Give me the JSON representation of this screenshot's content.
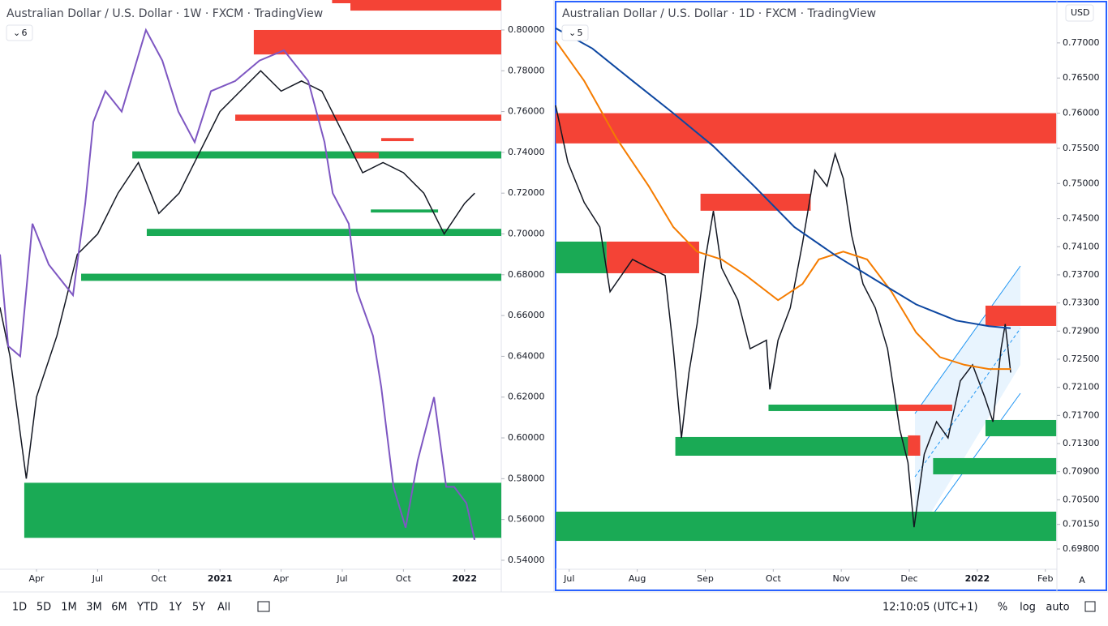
{
  "chart_data": [
    {
      "type": "line",
      "title": "Australian Dollar / U.S. Dollar · 1W · FXCM · TradingView",
      "legend_badge": "6",
      "xlim": [
        1.21,
        25.8
      ],
      "ylim": [
        0.5364,
        0.8147
      ],
      "xticks": [
        {
          "value": 3,
          "label": "Apr"
        },
        {
          "value": 6,
          "label": "Jul"
        },
        {
          "value": 9,
          "label": "Oct"
        },
        {
          "value": 12,
          "label": "2021"
        },
        {
          "value": 15,
          "label": "Apr"
        },
        {
          "value": 18,
          "label": "Jul"
        },
        {
          "value": 21,
          "label": "Oct"
        },
        {
          "value": 24,
          "label": "2022"
        }
      ],
      "yticks": [
        {
          "value": 0.8,
          "label": "0.80000"
        },
        {
          "value": 0.78,
          "label": "0.78000"
        },
        {
          "value": 0.76,
          "label": "0.76000"
        },
        {
          "value": 0.74,
          "label": "0.74000"
        },
        {
          "value": 0.72,
          "label": "0.72000"
        },
        {
          "value": 0.7,
          "label": "0.70000"
        },
        {
          "value": 0.68,
          "label": "0.68000"
        },
        {
          "value": 0.66,
          "label": "0.66000"
        },
        {
          "value": 0.64,
          "label": "0.64000"
        },
        {
          "value": 0.62,
          "label": "0.62000"
        },
        {
          "value": 0.6,
          "label": "0.60000"
        },
        {
          "value": 0.58,
          "label": "0.58000"
        },
        {
          "value": 0.56,
          "label": "0.56000"
        },
        {
          "value": 0.54,
          "label": "0.54000"
        }
      ],
      "zones": [
        {
          "color": "#f44336",
          "x": [
            17.5,
            25.8
          ],
          "top": 0.8147,
          "bottom": 0.8095
        },
        {
          "color": "#f44336",
          "x": [
            13.66,
            25.8
          ],
          "top": 0.8,
          "bottom": 0.788
        },
        {
          "color": "#f44336",
          "x": [
            12.75,
            25.8
          ],
          "top": 0.7585,
          "bottom": 0.7555
        },
        {
          "color": "#1aaa55",
          "x": [
            7.7,
            25.8
          ],
          "top": 0.7405,
          "bottom": 0.737
        },
        {
          "color": "#f44336",
          "x": [
            18.6,
            19.79
          ],
          "top": 0.74,
          "bottom": 0.737
        },
        {
          "color": "#f44336",
          "x": [
            19.91,
            21.5
          ],
          "top": 0.747,
          "bottom": 0.7455
        },
        {
          "color": "#1aaa55",
          "x": [
            19.4,
            22.7
          ],
          "top": 0.712,
          "bottom": 0.7105
        },
        {
          "color": "#1aaa55",
          "x": [
            8.41,
            25.8
          ],
          "top": 0.7025,
          "bottom": 0.699
        },
        {
          "color": "#1aaa55",
          "x": [
            5.19,
            25.8
          ],
          "top": 0.6805,
          "bottom": 0.677
        },
        {
          "color": "#1aaa55",
          "x": [
            2.4,
            25.8
          ],
          "top": 0.578,
          "bottom": 0.551
        }
      ],
      "series": [
        {
          "color": "#131722",
          "x": [
            1.21,
            1.7,
            2.5,
            3,
            4,
            5,
            6,
            7,
            8,
            9,
            10,
            11,
            12,
            13,
            14,
            15,
            16,
            17,
            18,
            19,
            20,
            21,
            22,
            23,
            24,
            24.5
          ],
          "values": [
            0.664,
            0.64,
            0.58,
            0.62,
            0.65,
            0.69,
            0.7,
            0.72,
            0.735,
            0.71,
            0.72,
            0.74,
            0.76,
            0.77,
            0.78,
            0.77,
            0.775,
            0.77,
            0.75,
            0.73,
            0.735,
            0.73,
            0.72,
            0.7,
            0.715,
            0.72
          ]
        },
        {
          "color": "#7e57c2",
          "x": [
            1.21,
            1.61,
            2.2,
            2.8,
            3.6,
            4.79,
            5.39,
            5.79,
            6.38,
            7.18,
            8.37,
            9.17,
            9.96,
            10.76,
            11.56,
            12.75,
            13.94,
            15.14,
            16.33,
            17.13,
            17.53,
            18.32,
            18.72,
            19.51,
            19.91,
            20.51,
            21.11,
            21.7,
            22.5,
            23.1,
            23.49,
            24.09,
            24.49
          ],
          "values": [
            0.69,
            0.645,
            0.64,
            0.705,
            0.685,
            0.67,
            0.715,
            0.755,
            0.77,
            0.76,
            0.8,
            0.785,
            0.76,
            0.745,
            0.77,
            0.775,
            0.785,
            0.79,
            0.775,
            0.745,
            0.72,
            0.705,
            0.672,
            0.65,
            0.625,
            0.576,
            0.556,
            0.589,
            0.62,
            0.576,
            0.576,
            0.568,
            0.55
          ]
        }
      ]
    },
    {
      "type": "line",
      "title": "Australian Dollar / U.S. Dollar · 1D · FXCM · TradingView",
      "legend_badge": "5",
      "currency": "USD",
      "corner": "A",
      "xlim": [
        0.8,
        8.17
      ],
      "ylim": [
        0.69535,
        0.7761
      ],
      "xticks": [
        {
          "value": 1,
          "label": "Jul"
        },
        {
          "value": 2,
          "label": "Aug"
        },
        {
          "value": 3,
          "label": "Sep"
        },
        {
          "value": 4,
          "label": "Oct"
        },
        {
          "value": 5,
          "label": "Nov"
        },
        {
          "value": 6,
          "label": "Dec"
        },
        {
          "value": 7,
          "label": "2022"
        },
        {
          "value": 8,
          "label": "Feb"
        }
      ],
      "yticks": [
        {
          "value": 0.77,
          "label": "0.77000"
        },
        {
          "value": 0.765,
          "label": "0.76500"
        },
        {
          "value": 0.76,
          "label": "0.76000"
        },
        {
          "value": 0.755,
          "label": "0.75500"
        },
        {
          "value": 0.75,
          "label": "0.75000"
        },
        {
          "value": 0.745,
          "label": "0.74500"
        },
        {
          "value": 0.741,
          "label": "0.74100"
        },
        {
          "value": 0.737,
          "label": "0.73700"
        },
        {
          "value": 0.733,
          "label": "0.73300"
        },
        {
          "value": 0.729,
          "label": "0.72900"
        },
        {
          "value": 0.725,
          "label": "0.72500"
        },
        {
          "value": 0.721,
          "label": "0.72100"
        },
        {
          "value": 0.717,
          "label": "0.71700"
        },
        {
          "value": 0.713,
          "label": "0.71300"
        },
        {
          "value": 0.709,
          "label": "0.70900"
        },
        {
          "value": 0.705,
          "label": "0.70500"
        },
        {
          "value": 0.7015,
          "label": "0.70150"
        },
        {
          "value": 0.698,
          "label": "0.69800"
        }
      ],
      "zones": [
        {
          "color": "#f44336",
          "x": [
            0.8,
            8.16
          ],
          "top": 0.76,
          "bottom": 0.7557
        },
        {
          "color": "#f44336",
          "x": [
            2.93,
            4.55
          ],
          "top": 0.74854,
          "bottom": 0.74612
        },
        {
          "color": "#1aaa55",
          "x": [
            0.8,
            1.55
          ],
          "top": 0.74173,
          "bottom": 0.73723
        },
        {
          "color": "#f44336",
          "x": [
            1.55,
            2.91
          ],
          "top": 0.74173,
          "bottom": 0.73723
        },
        {
          "color": "#f44336",
          "x": [
            7.12,
            8.16
          ],
          "top": 0.73262,
          "bottom": 0.72973
        },
        {
          "color": "#1aaa55",
          "x": [
            7.12,
            8.16
          ],
          "top": 0.71635,
          "bottom": 0.71404
        },
        {
          "color": "#1aaa55",
          "x": [
            3.93,
            5.84
          ],
          "top": 0.71854,
          "bottom": 0.71762
        },
        {
          "color": "#f44336",
          "x": [
            5.84,
            6.63
          ],
          "top": 0.71854,
          "bottom": 0.71762
        },
        {
          "color": "#1aaa55",
          "x": [
            2.56,
            6.1
          ],
          "top": 0.71393,
          "bottom": 0.71127
        },
        {
          "color": "#f44336",
          "x": [
            5.98,
            6.16
          ],
          "top": 0.71416,
          "bottom": 0.71127
        },
        {
          "color": "#1aaa55",
          "x": [
            6.35,
            8.16
          ],
          "top": 0.71093,
          "bottom": 0.70862
        },
        {
          "color": "#1aaa55",
          "x": [
            0.8,
            8.16
          ],
          "top": 0.70331,
          "bottom": 0.69915
        }
      ],
      "series": [
        {
          "color": "#131722",
          "x": [
            0.8,
            0.98,
            1.22,
            1.45,
            1.6,
            1.93,
            2.17,
            2.41,
            2.53,
            2.65,
            2.76,
            2.88,
            3.0,
            3.12,
            3.24,
            3.48,
            3.66,
            3.9,
            3.95,
            4.07,
            4.25,
            4.43,
            4.61,
            4.79,
            4.91,
            5.03,
            5.15,
            5.32,
            5.5,
            5.68,
            5.86,
            5.98,
            6.07,
            6.22,
            6.4,
            6.57,
            6.75,
            6.93,
            7.11,
            7.23,
            7.35,
            7.41,
            7.49
          ],
          "values": [
            0.7611,
            0.753,
            0.7473,
            0.7438,
            0.7346,
            0.7392,
            0.738,
            0.7369,
            0.7265,
            0.7138,
            0.7231,
            0.73,
            0.7392,
            0.7461,
            0.738,
            0.7334,
            0.7265,
            0.7277,
            0.7207,
            0.7277,
            0.7323,
            0.7415,
            0.7519,
            0.7496,
            0.7542,
            0.7507,
            0.7427,
            0.7357,
            0.7323,
            0.7265,
            0.715,
            0.7103,
            0.7011,
            0.7115,
            0.7161,
            0.7138,
            0.7219,
            0.7242,
            0.7196,
            0.7161,
            0.7265,
            0.73,
            0.7231
          ]
        },
        {
          "color": "#f57c00",
          "x": [
            0.8,
            1.22,
            1.69,
            2.17,
            2.53,
            2.88,
            3.24,
            3.6,
            4.07,
            4.43,
            4.67,
            5.03,
            5.38,
            5.74,
            6.1,
            6.45,
            6.81,
            7.17,
            7.49
          ],
          "values": [
            0.7703,
            0.7646,
            0.7565,
            0.7496,
            0.7438,
            0.7403,
            0.7392,
            0.7369,
            0.7334,
            0.7357,
            0.7392,
            0.7403,
            0.7392,
            0.7346,
            0.7288,
            0.7253,
            0.7242,
            0.7236,
            0.7236
          ]
        },
        {
          "color": "#0d47a1",
          "x": [
            0.8,
            1.34,
            1.93,
            2.53,
            3.12,
            3.72,
            4.31,
            4.91,
            5.5,
            6.1,
            6.69,
            7.17,
            7.49
          ],
          "values": [
            0.7721,
            0.7692,
            0.7646,
            0.76,
            0.7553,
            0.7496,
            0.7438,
            0.7398,
            0.7363,
            0.7328,
            0.7305,
            0.7297,
            0.7294
          ]
        }
      ]
    }
  ],
  "toolbar": {
    "ranges": [
      "1D",
      "5D",
      "1M",
      "3M",
      "6M",
      "YTD",
      "1Y",
      "5Y",
      "All"
    ],
    "clock": "12:10:05 (UTC+1)",
    "percent": "%",
    "log": "log",
    "auto": "auto"
  }
}
